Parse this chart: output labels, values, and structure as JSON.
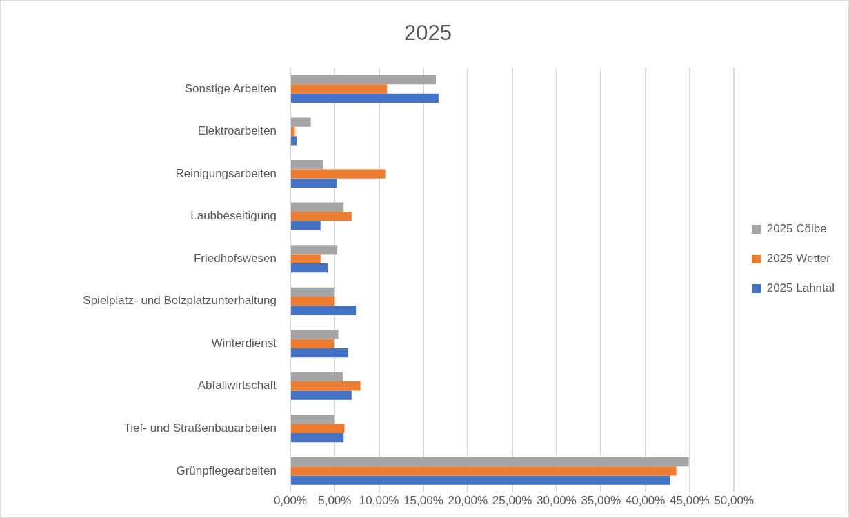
{
  "chart_data": {
    "type": "bar",
    "orientation": "horizontal",
    "title": "2025",
    "categories": [
      "Sonstige Arbeiten",
      "Elektroarbeiten",
      "Reinigungsarbeiten",
      "Laubbeseitigung",
      "Friedhofswesen",
      "Spielplatz- und Bolzplatzunterhaltung",
      "Winterdienst",
      "Abfallwirtschaft",
      "Tief- und Straßenbauarbeiten",
      "Grünpflegearbeiten"
    ],
    "series": [
      {
        "name": "2025 Cölbe",
        "color": "#a5a5a5",
        "values": [
          16.4,
          2.3,
          3.7,
          6.0,
          5.3,
          4.9,
          5.4,
          5.9,
          5.0,
          44.9
        ]
      },
      {
        "name": "2025 Wetter",
        "color": "#ed7d31",
        "values": [
          10.9,
          0.5,
          10.7,
          6.9,
          3.4,
          5.0,
          4.9,
          7.9,
          6.1,
          43.5
        ]
      },
      {
        "name": "2025 Lahntal",
        "color": "#4472c4",
        "values": [
          16.7,
          0.7,
          5.2,
          3.4,
          4.2,
          7.4,
          6.5,
          6.9,
          6.0,
          42.8
        ]
      }
    ],
    "xlim": [
      0,
      50
    ],
    "xticks": [
      {
        "value": 0,
        "label": "0,00%"
      },
      {
        "value": 5,
        "label": "5,00%"
      },
      {
        "value": 10,
        "label": "10,00%"
      },
      {
        "value": 15,
        "label": "15,00%"
      },
      {
        "value": 20,
        "label": "20,00%"
      },
      {
        "value": 25,
        "label": "25,00%"
      },
      {
        "value": 30,
        "label": "30,00%"
      },
      {
        "value": 35,
        "label": "35,00%"
      },
      {
        "value": 40,
        "label": "40,00%"
      },
      {
        "value": 45,
        "label": "45,00%"
      },
      {
        "value": 50,
        "label": "50,00%"
      }
    ],
    "grid": "x",
    "legend": "right"
  }
}
